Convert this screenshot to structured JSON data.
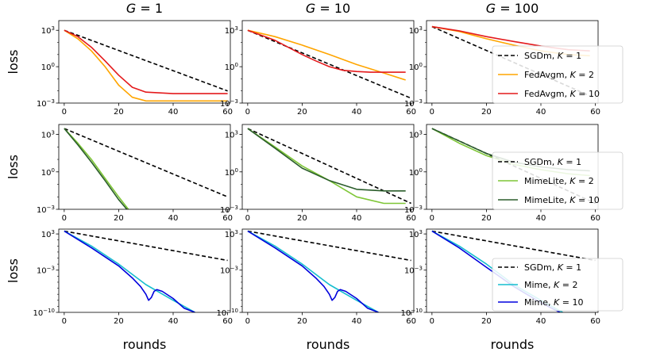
{
  "chart_data": {
    "type": "line",
    "column_titles": [
      "G = 1",
      "G = 10",
      "G = 100"
    ],
    "xlabel": "rounds",
    "ylabel": "loss",
    "xlim": [
      -2,
      61
    ],
    "xticks": [
      "0",
      "20",
      "40",
      "60"
    ],
    "y_scale": "log",
    "legend_location": "center-left of right column",
    "rows": [
      {
        "ylim_log10": [
          -3,
          3.8
        ],
        "ytick_exponents": [
          -3,
          0,
          3
        ],
        "ytick_labels": [
          "10−3",
          "100",
          "103"
        ],
        "legend": [
          {
            "prefix": "SGDm, ",
            "k": "1"
          },
          {
            "prefix": "FedAvgm, ",
            "k": "2"
          },
          {
            "prefix": "FedAvgm, ",
            "k": "10"
          }
        ],
        "panels": [
          {
            "column": "G = 1",
            "series": [
              {
                "legend_index": 0,
                "color": "#000000",
                "dash": true,
                "x": [
                  0,
                  60
                ],
                "y": [
                  1000,
                  0.01
                ]
              },
              {
                "legend_index": 1,
                "color": "#ffa500",
                "dash": false,
                "x": [
                  0,
                  5,
                  10,
                  15,
                  20,
                  25,
                  30,
                  60
                ],
                "y": [
                  1000,
                  200,
                  20,
                  1,
                  0.03,
                  0.003,
                  0.0015,
                  0.0015
                ]
              },
              {
                "legend_index": 2,
                "color": "#e41a1c",
                "dash": false,
                "x": [
                  0,
                  5,
                  10,
                  15,
                  20,
                  25,
                  30,
                  40,
                  60
                ],
                "y": [
                  1000,
                  300,
                  40,
                  3,
                  0.2,
                  0.02,
                  0.008,
                  0.006,
                  0.006
                ]
              }
            ]
          },
          {
            "column": "G = 10",
            "series": [
              {
                "legend_index": 0,
                "color": "#000000",
                "dash": true,
                "x": [
                  0,
                  60
                ],
                "y": [
                  1000,
                  0.0025
                ]
              },
              {
                "legend_index": 1,
                "color": "#ffa500",
                "dash": false,
                "x": [
                  0,
                  10,
                  20,
                  30,
                  40,
                  50,
                  58
                ],
                "y": [
                  1000,
                  300,
                  60,
                  10,
                  1.5,
                  0.3,
                  0.08
                ]
              },
              {
                "legend_index": 2,
                "color": "#e41a1c",
                "dash": false,
                "x": [
                  0,
                  10,
                  20,
                  25,
                  30,
                  35,
                  40,
                  45,
                  58
                ],
                "y": [
                  1000,
                  150,
                  10,
                  3,
                  1,
                  0.5,
                  0.4,
                  0.35,
                  0.35
                ]
              }
            ]
          },
          {
            "column": "G = 100",
            "series": [
              {
                "legend_index": 0,
                "color": "#000000",
                "dash": true,
                "x": [
                  0,
                  60
                ],
                "y": [
                  2000,
                  0.0025
                ]
              },
              {
                "legend_index": 1,
                "color": "#ffa500",
                "dash": false,
                "x": [
                  0,
                  10,
                  20,
                  30,
                  40,
                  50,
                  58
                ],
                "y": [
                  2000,
                  800,
                  200,
                  60,
                  20,
                  10,
                  8
                ]
              },
              {
                "legend_index": 2,
                "color": "#e41a1c",
                "dash": false,
                "x": [
                  0,
                  10,
                  20,
                  30,
                  40,
                  50,
                  58
                ],
                "y": [
                  2000,
                  900,
                  300,
                  120,
                  50,
                  25,
                  20
                ]
              }
            ]
          }
        ]
      },
      {
        "ylim_log10": [
          -3,
          3.8
        ],
        "ytick_exponents": [
          -3,
          0,
          3
        ],
        "ytick_labels": [
          "10−3",
          "100",
          "103"
        ],
        "legend": [
          {
            "prefix": "SGDm, ",
            "k": "1"
          },
          {
            "prefix": "MimeLite, ",
            "k": "2"
          },
          {
            "prefix": "MimeLite, ",
            "k": "10"
          }
        ],
        "panels": [
          {
            "column": "G = 1",
            "series": [
              {
                "legend_index": 0,
                "color": "#000000",
                "dash": true,
                "x": [
                  0,
                  60
                ],
                "y": [
                  3000,
                  0.01
                ]
              },
              {
                "legend_index": 1,
                "color": "#7ec636",
                "dash": false,
                "x": [
                  0,
                  5,
                  10,
                  15,
                  20,
                  25,
                  28
                ],
                "y": [
                  3000,
                  200,
                  10,
                  0.3,
                  0.01,
                  0.0004,
                  3e-05
                ]
              },
              {
                "legend_index": 2,
                "color": "#2b5d2b",
                "dash": false,
                "x": [
                  0,
                  5,
                  10,
                  15,
                  20,
                  25,
                  27
                ],
                "y": [
                  3000,
                  150,
                  6,
                  0.2,
                  0.006,
                  0.0003,
                  3e-05
                ]
              }
            ]
          },
          {
            "column": "G = 10",
            "series": [
              {
                "legend_index": 0,
                "color": "#000000",
                "dash": true,
                "x": [
                  0,
                  60
                ],
                "y": [
                  3000,
                  0.003
                ]
              },
              {
                "legend_index": 1,
                "color": "#7ec636",
                "dash": false,
                "x": [
                  0,
                  10,
                  20,
                  30,
                  40,
                  50,
                  58
                ],
                "y": [
                  3000,
                  100,
                  3,
                  0.2,
                  0.01,
                  0.003,
                  0.003
                ]
              },
              {
                "legend_index": 2,
                "color": "#2b5d2b",
                "dash": false,
                "x": [
                  0,
                  10,
                  20,
                  30,
                  40,
                  50,
                  58
                ],
                "y": [
                  3000,
                  80,
                  2,
                  0.2,
                  0.04,
                  0.03,
                  0.03
                ]
              }
            ]
          },
          {
            "column": "G = 100",
            "series": [
              {
                "legend_index": 0,
                "color": "#000000",
                "dash": true,
                "x": [
                  0,
                  60
                ],
                "y": [
                  3000,
                  0.003
                ]
              },
              {
                "legend_index": 1,
                "color": "#7ec636",
                "dash": false,
                "x": [
                  0,
                  10,
                  20,
                  30,
                  40,
                  50,
                  58
                ],
                "y": [
                  3000,
                  200,
                  20,
                  4,
                  1.5,
                  0.7,
                  0.5
                ]
              },
              {
                "legend_index": 2,
                "color": "#2b5d2b",
                "dash": false,
                "x": [
                  0,
                  10,
                  20,
                  30,
                  40,
                  50,
                  58
                ],
                "y": [
                  3000,
                  300,
                  30,
                  6,
                  2.5,
                  1.5,
                  1.2
                ]
              }
            ]
          }
        ]
      },
      {
        "ylim_log10": [
          -10,
          3.8
        ],
        "ytick_exponents": [
          -10,
          -3,
          3
        ],
        "ytick_labels": [
          "10−10",
          "10−3",
          "103"
        ],
        "legend": [
          {
            "prefix": "SGDm, ",
            "k": "1"
          },
          {
            "prefix": "Mime, ",
            "k": "2"
          },
          {
            "prefix": "Mime, ",
            "k": "10"
          }
        ],
        "panels": [
          {
            "column": "G = 1",
            "series": [
              {
                "legend_index": 0,
                "color": "#000000",
                "dash": true,
                "x": [
                  0,
                  60
                ],
                "y": [
                  3000,
                  0.04
                ]
              },
              {
                "legend_index": 1,
                "color": "#17becf",
                "dash": false,
                "x": [
                  0,
                  10,
                  20,
                  30,
                  40,
                  48
                ],
                "y": [
                  3000,
                  10,
                  0.01,
                  4e-06,
                  1e-08,
                  1e-10
                ]
              },
              {
                "legend_index": 2,
                "color": "#0000dd",
                "dash": false,
                "x": [
                  0,
                  10,
                  20,
                  25,
                  28,
                  30,
                  31,
                  32,
                  33,
                  34,
                  36,
                  40,
                  44,
                  48
                ],
                "y": [
                  3000,
                  5,
                  0.005,
                  5e-05,
                  2e-06,
                  1e-07,
                  1e-08,
                  3e-08,
                  3e-07,
                  6e-07,
                  3e-07,
                  2e-08,
                  5e-10,
                  1e-10
                ]
              }
            ]
          },
          {
            "column": "G = 10",
            "series": [
              {
                "legend_index": 0,
                "color": "#000000",
                "dash": true,
                "x": [
                  0,
                  60
                ],
                "y": [
                  3000,
                  0.04
                ]
              },
              {
                "legend_index": 1,
                "color": "#17becf",
                "dash": false,
                "x": [
                  0,
                  10,
                  20,
                  30,
                  40,
                  48
                ],
                "y": [
                  3000,
                  10,
                  0.01,
                  4e-06,
                  1e-08,
                  1e-10
                ]
              },
              {
                "legend_index": 2,
                "color": "#0000dd",
                "dash": false,
                "x": [
                  0,
                  10,
                  20,
                  25,
                  28,
                  30,
                  31,
                  32,
                  33,
                  34,
                  36,
                  40,
                  44,
                  48
                ],
                "y": [
                  3000,
                  5,
                  0.005,
                  5e-05,
                  2e-06,
                  1e-07,
                  1e-08,
                  3e-08,
                  3e-07,
                  6e-07,
                  3e-07,
                  2e-08,
                  5e-10,
                  1e-10
                ]
              }
            ]
          },
          {
            "column": "G = 100",
            "series": [
              {
                "legend_index": 0,
                "color": "#000000",
                "dash": true,
                "x": [
                  0,
                  60
                ],
                "y": [
                  3000,
                  0.04
                ]
              },
              {
                "legend_index": 1,
                "color": "#17becf",
                "dash": false,
                "x": [
                  0,
                  10,
                  20,
                  30,
                  40,
                  48
                ],
                "y": [
                  3000,
                  10,
                  0.01,
                  4e-06,
                  1e-08,
                  1e-10
                ]
              },
              {
                "legend_index": 2,
                "color": "#0000dd",
                "dash": false,
                "x": [
                  0,
                  10,
                  20,
                  30,
                  40,
                  47
                ],
                "y": [
                  3000,
                  5,
                  0.003,
                  2e-06,
                  4e-09,
                  1e-10
                ]
              }
            ]
          }
        ]
      }
    ]
  }
}
